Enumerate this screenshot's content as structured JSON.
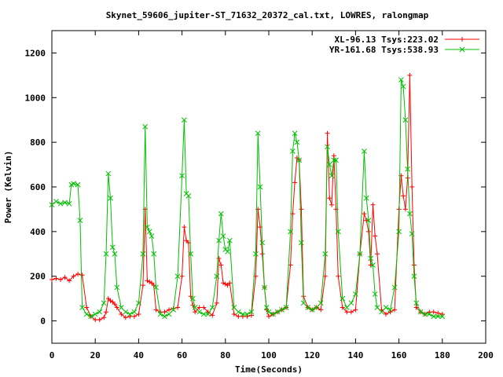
{
  "chart_data": {
    "type": "line",
    "title": "Skynet_59606_jupiter-ST_71632_20372_cal.txt, LOWRES, ralongmap",
    "xlabel": "Time(Seconds)",
    "ylabel": "Power (Kelvin)",
    "xlim": [
      0,
      200
    ],
    "ylim": [
      -100,
      1300
    ],
    "xticks": [
      0,
      20,
      40,
      60,
      80,
      100,
      120,
      140,
      160,
      180,
      200
    ],
    "yticks": [
      0,
      200,
      400,
      600,
      800,
      1000,
      1200
    ],
    "legend_position": "top-right",
    "series": [
      {
        "name": "XL-96.13 Tsys:223.02",
        "color": "#ff0000",
        "marker": "plus",
        "x": [
          0,
          2,
          4,
          6,
          8,
          10,
          12,
          14,
          16,
          18,
          20,
          22,
          24,
          25,
          26,
          27,
          28,
          29,
          30,
          32,
          34,
          36,
          38,
          40,
          42,
          43,
          44,
          45,
          46,
          47,
          48,
          50,
          52,
          54,
          56,
          58,
          60,
          61,
          62,
          63,
          64,
          65,
          66,
          68,
          70,
          72,
          74,
          76,
          77,
          78,
          79,
          80,
          81,
          82,
          84,
          86,
          88,
          90,
          92,
          94,
          95,
          96,
          97,
          98,
          99,
          100,
          102,
          104,
          106,
          108,
          110,
          111,
          112,
          113,
          114,
          115,
          116,
          118,
          120,
          122,
          124,
          126,
          127,
          128,
          129,
          130,
          131,
          132,
          134,
          136,
          138,
          140,
          142,
          144,
          145,
          146,
          147,
          148,
          149,
          150,
          152,
          154,
          156,
          158,
          160,
          161,
          162,
          163,
          164,
          165,
          166,
          167,
          168,
          170,
          172,
          174,
          176,
          178,
          180
        ],
        "y": [
          185,
          190,
          185,
          195,
          180,
          200,
          210,
          205,
          60,
          20,
          5,
          5,
          15,
          40,
          100,
          90,
          85,
          75,
          60,
          30,
          15,
          20,
          20,
          30,
          160,
          500,
          180,
          175,
          170,
          160,
          50,
          40,
          40,
          50,
          55,
          60,
          200,
          420,
          360,
          350,
          110,
          70,
          40,
          60,
          60,
          40,
          25,
          80,
          280,
          250,
          170,
          165,
          160,
          170,
          30,
          20,
          20,
          20,
          25,
          200,
          500,
          420,
          300,
          150,
          50,
          20,
          30,
          40,
          50,
          60,
          250,
          480,
          620,
          730,
          720,
          500,
          110,
          60,
          50,
          60,
          50,
          200,
          840,
          550,
          520,
          740,
          500,
          200,
          60,
          40,
          40,
          50,
          300,
          480,
          450,
          400,
          250,
          520,
          380,
          300,
          50,
          30,
          40,
          50,
          500,
          650,
          560,
          500,
          640,
          1100,
          600,
          250,
          60,
          40,
          30,
          40,
          40,
          35,
          30
        ]
      },
      {
        "name": "YR-161.68 Tsys:538.93",
        "color": "#00c000",
        "marker": "x",
        "x": [
          0,
          2,
          4,
          6,
          8,
          9,
          10,
          12,
          13,
          14,
          16,
          18,
          20,
          22,
          24,
          25,
          26,
          27,
          28,
          29,
          30,
          32,
          34,
          36,
          38,
          40,
          42,
          43,
          44,
          45,
          46,
          47,
          48,
          50,
          52,
          54,
          56,
          58,
          60,
          61,
          62,
          63,
          64,
          65,
          66,
          68,
          70,
          72,
          74,
          76,
          77,
          78,
          79,
          80,
          81,
          82,
          84,
          86,
          88,
          90,
          92,
          94,
          95,
          96,
          97,
          98,
          99,
          100,
          102,
          104,
          106,
          108,
          110,
          111,
          112,
          113,
          114,
          115,
          116,
          118,
          120,
          122,
          124,
          126,
          127,
          128,
          129,
          130,
          131,
          132,
          134,
          136,
          138,
          140,
          142,
          144,
          145,
          146,
          147,
          148,
          149,
          150,
          152,
          154,
          156,
          158,
          160,
          161,
          162,
          163,
          164,
          165,
          166,
          167,
          168,
          170,
          172,
          174,
          176,
          178,
          180
        ],
        "y": [
          520,
          535,
          525,
          530,
          525,
          610,
          615,
          610,
          450,
          60,
          30,
          20,
          30,
          40,
          80,
          300,
          660,
          550,
          330,
          300,
          150,
          60,
          40,
          30,
          40,
          80,
          300,
          870,
          420,
          400,
          380,
          300,
          150,
          30,
          20,
          30,
          50,
          200,
          650,
          900,
          570,
          560,
          300,
          100,
          60,
          40,
          30,
          30,
          60,
          200,
          360,
          480,
          380,
          320,
          310,
          360,
          60,
          40,
          30,
          30,
          40,
          300,
          840,
          600,
          350,
          150,
          60,
          40,
          30,
          40,
          50,
          60,
          400,
          760,
          840,
          800,
          720,
          350,
          80,
          60,
          50,
          60,
          80,
          300,
          780,
          700,
          650,
          720,
          720,
          400,
          100,
          60,
          80,
          120,
          300,
          760,
          550,
          450,
          280,
          250,
          120,
          60,
          40,
          60,
          50,
          150,
          400,
          1080,
          1050,
          900,
          680,
          480,
          390,
          200,
          80,
          40,
          30,
          30,
          20,
          20,
          20
        ]
      }
    ]
  }
}
